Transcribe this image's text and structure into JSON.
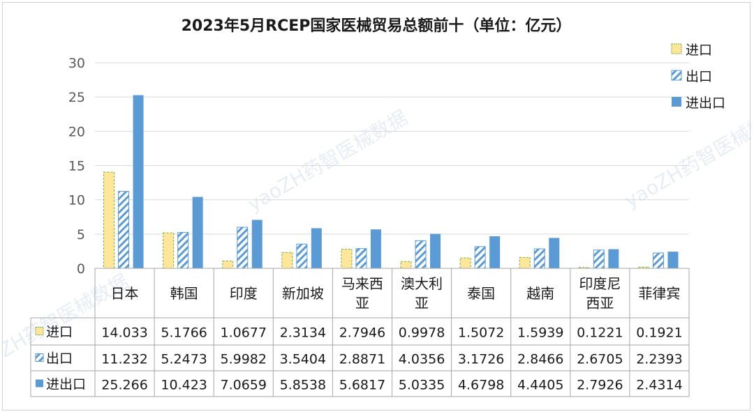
{
  "chart_data": {
    "type": "bar",
    "title": "2023年5月RCEP国家医械贸易总额前十（单位：亿元）",
    "categories": [
      "日本",
      "韩国",
      "印度",
      "新加坡",
      "马来西亚",
      "澳大利亚",
      "泰国",
      "越南",
      "印度尼西亚",
      "菲律宾"
    ],
    "series": [
      {
        "name": "进口",
        "values": [
          14.033,
          5.1766,
          1.0677,
          2.3134,
          2.7946,
          0.9978,
          1.5072,
          1.5939,
          0.1221,
          0.1921
        ],
        "color": "#ffe699"
      },
      {
        "name": "出口",
        "values": [
          11.232,
          5.2473,
          5.9982,
          3.5404,
          2.8871,
          4.0356,
          3.1726,
          2.8466,
          2.6705,
          2.2393
        ],
        "color": "#5b9bd5"
      },
      {
        "name": "进出口",
        "values": [
          25.266,
          10.423,
          7.0659,
          5.8538,
          5.6817,
          5.0335,
          4.6798,
          4.4405,
          2.7926,
          2.4314
        ],
        "color": "#5b9bd5"
      }
    ],
    "table_rows": [
      [
        "14.033",
        "5.1766",
        "1.0677",
        "2.3134",
        "2.7946",
        "0.9978",
        "1.5072",
        "1.5939",
        "0.1221",
        "0.1921"
      ],
      [
        "11.232",
        "5.2473",
        "5.9982",
        "3.5404",
        "2.8871",
        "4.0356",
        "3.1726",
        "2.8466",
        "2.6705",
        "2.2393"
      ],
      [
        "25.266",
        "10.423",
        "7.0659",
        "5.8538",
        "5.6817",
        "5.0335",
        "4.6798",
        "4.4405",
        "2.7926",
        "2.4314"
      ]
    ],
    "ylim": [
      0,
      30
    ],
    "yticks": [
      "0",
      "5",
      "10",
      "15",
      "20",
      "25",
      "30"
    ],
    "grid": true,
    "legend_position": "top-right",
    "xlabel": "",
    "ylabel": ""
  },
  "watermark": {
    "text": "yaoZH药智医械数据"
  }
}
